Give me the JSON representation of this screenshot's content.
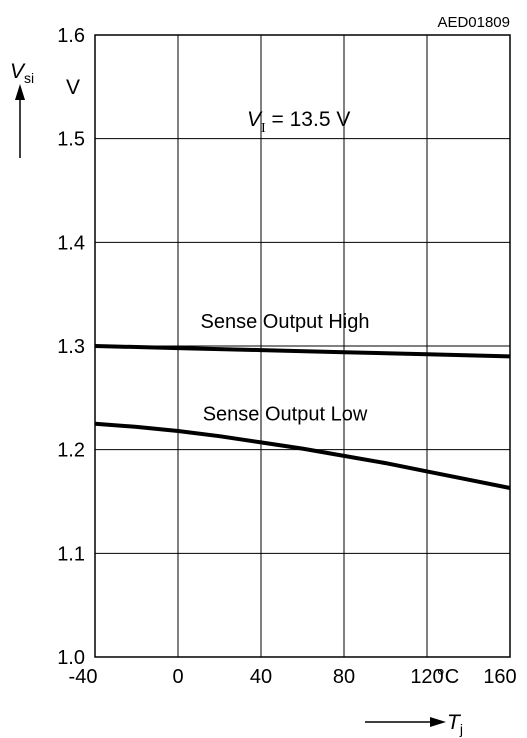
{
  "figure_id": "AED01809",
  "chart_data": {
    "type": "line",
    "title": "",
    "annotation": {
      "symbol": "V",
      "subscript": "I",
      "text": " = 13.5 V"
    },
    "y_axis": {
      "symbol": "V",
      "subscript": "si",
      "unit": "V",
      "ylim": [
        1.0,
        1.6
      ],
      "ticks": [
        1.0,
        1.1,
        1.2,
        1.3,
        1.4,
        1.5,
        1.6
      ],
      "tick_labels": [
        "1.0",
        "1.1",
        "1.2",
        "1.3",
        "1.4",
        "1.5",
        "1.6"
      ]
    },
    "x_axis": {
      "symbol": "T",
      "subscript": "j",
      "unit": "°C",
      "xlim": [
        -40,
        160
      ],
      "ticks": [
        -40,
        0,
        40,
        80,
        120,
        160
      ],
      "tick_labels": [
        "-40",
        "0",
        "40",
        "80",
        "120",
        "160"
      ]
    },
    "grid": true,
    "series": [
      {
        "name": "Sense Output High",
        "x": [
          -40,
          0,
          40,
          80,
          120,
          160
        ],
        "y": [
          1.3,
          1.298,
          1.296,
          1.294,
          1.292,
          1.29
        ]
      },
      {
        "name": "Sense Output Low",
        "x": [
          -40,
          -20,
          0,
          20,
          40,
          60,
          80,
          100,
          120,
          140,
          160
        ],
        "y": [
          1.225,
          1.222,
          1.218,
          1.213,
          1.207,
          1.201,
          1.194,
          1.187,
          1.179,
          1.171,
          1.163
        ]
      }
    ]
  }
}
